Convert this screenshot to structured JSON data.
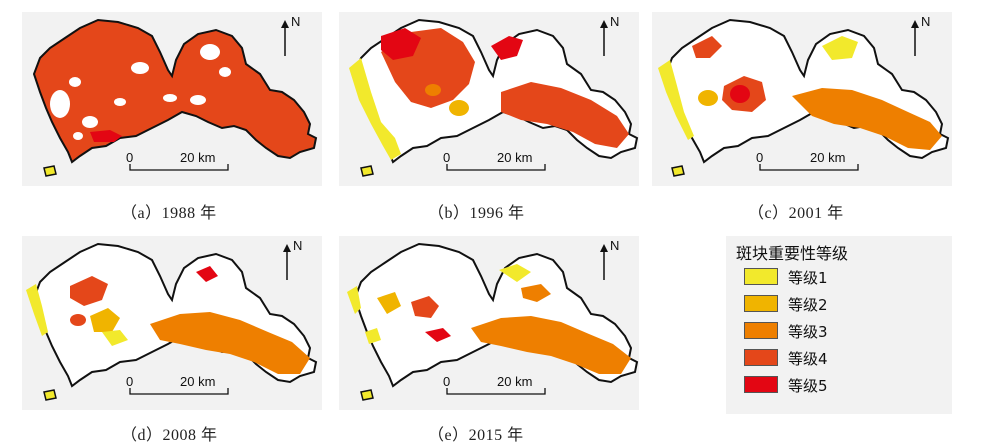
{
  "panels": [
    {
      "id": "a",
      "caption": "（a）1988 年",
      "year": "1988",
      "composition": [
        "level4",
        "level5"
      ]
    },
    {
      "id": "b",
      "caption": "（b）1996 年",
      "year": "1996",
      "composition": [
        "level1",
        "level2",
        "level3",
        "level4",
        "level5"
      ]
    },
    {
      "id": "c",
      "caption": "（c）2001 年",
      "year": "2001",
      "composition": [
        "level1",
        "level2",
        "level3",
        "level4",
        "level5"
      ]
    },
    {
      "id": "d",
      "caption": "（d）2008 年",
      "year": "2008",
      "composition": [
        "level1",
        "level2",
        "level3",
        "level4",
        "level5"
      ]
    },
    {
      "id": "e",
      "caption": "（e）2015 年",
      "year": "2015",
      "composition": [
        "level1",
        "level2",
        "level3",
        "level4",
        "level5"
      ]
    }
  ],
  "north_label": "N",
  "scale": {
    "start": "0",
    "end": "20 km"
  },
  "legend": {
    "title": "斑块重要性等级",
    "items": [
      {
        "label": "等级1",
        "color": "#f2e92c"
      },
      {
        "label": "等级2",
        "color": "#f0b400"
      },
      {
        "label": "等级3",
        "color": "#ee7f00"
      },
      {
        "label": "等级4",
        "color": "#e4471a"
      },
      {
        "label": "等级5",
        "color": "#e30613"
      }
    ]
  },
  "colors": {
    "panel_background": "#f2f2f2",
    "land_background": "#ffffff",
    "outline": "#111111",
    "level1": "#f2e92c",
    "level2": "#f0b400",
    "level3": "#ee7f00",
    "level4": "#e4471a",
    "level5": "#e30613"
  }
}
